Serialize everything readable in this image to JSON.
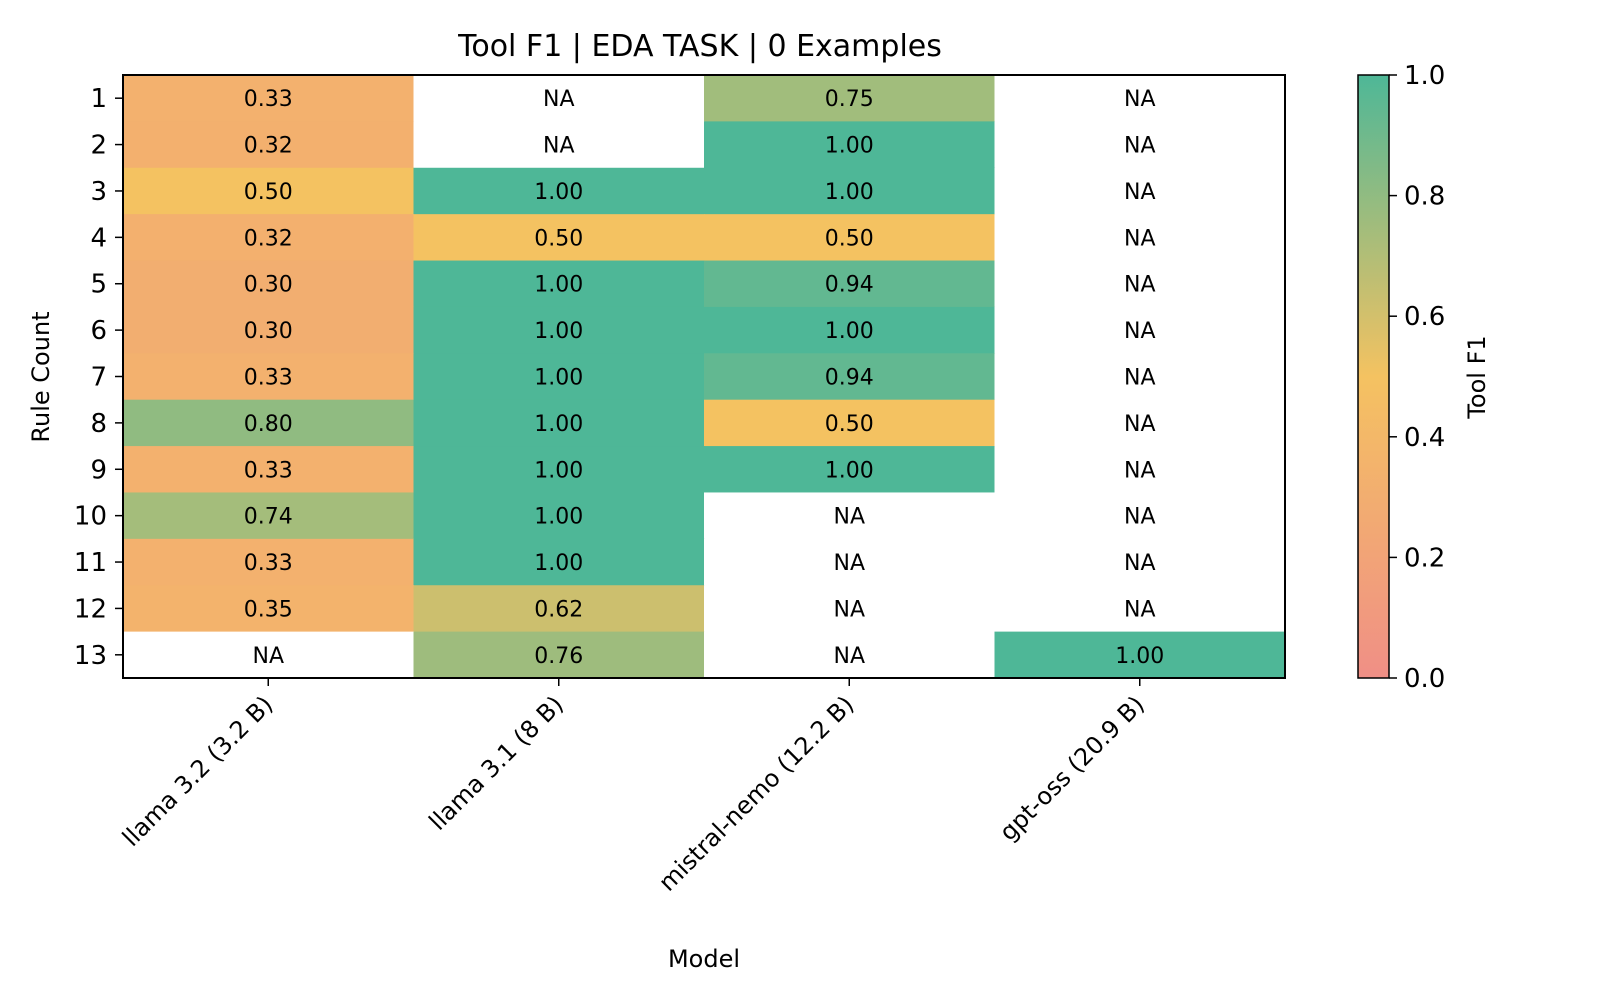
{
  "chart_data": {
    "type": "heatmap",
    "title": "Tool F1 | EDA TASK | 0 Examples",
    "xlabel": "Model",
    "ylabel": "Rule Count",
    "x_categories": [
      "llama 3.2 (3.2 B)",
      "llama 3.1 (8 B)",
      "mistral-nemo (12.2 B)",
      "gpt-oss (20.9 B)"
    ],
    "y_categories": [
      "1",
      "2",
      "3",
      "4",
      "5",
      "6",
      "7",
      "8",
      "9",
      "10",
      "11",
      "12",
      "13"
    ],
    "values": [
      [
        0.33,
        null,
        0.75,
        null
      ],
      [
        0.32,
        null,
        1.0,
        null
      ],
      [
        0.5,
        1.0,
        1.0,
        null
      ],
      [
        0.32,
        0.5,
        0.5,
        null
      ],
      [
        0.3,
        1.0,
        0.94,
        null
      ],
      [
        0.3,
        1.0,
        1.0,
        null
      ],
      [
        0.33,
        1.0,
        0.94,
        null
      ],
      [
        0.8,
        1.0,
        0.5,
        null
      ],
      [
        0.33,
        1.0,
        1.0,
        null
      ],
      [
        0.74,
        1.0,
        null,
        null
      ],
      [
        0.33,
        1.0,
        null,
        null
      ],
      [
        0.35,
        0.62,
        null,
        null
      ],
      [
        null,
        0.76,
        null,
        1.0
      ]
    ],
    "na_label": "NA",
    "value_format_decimals": 2,
    "colorbar": {
      "label": "Tool F1",
      "range": [
        0.0,
        1.0
      ],
      "ticks": [
        "0.0",
        "0.2",
        "0.4",
        "0.6",
        "0.8",
        "1.0"
      ],
      "colors": [
        "#f08f86",
        "#f4c261",
        "#4eb797"
      ]
    },
    "grid": false,
    "legend": "colorbar-right"
  }
}
